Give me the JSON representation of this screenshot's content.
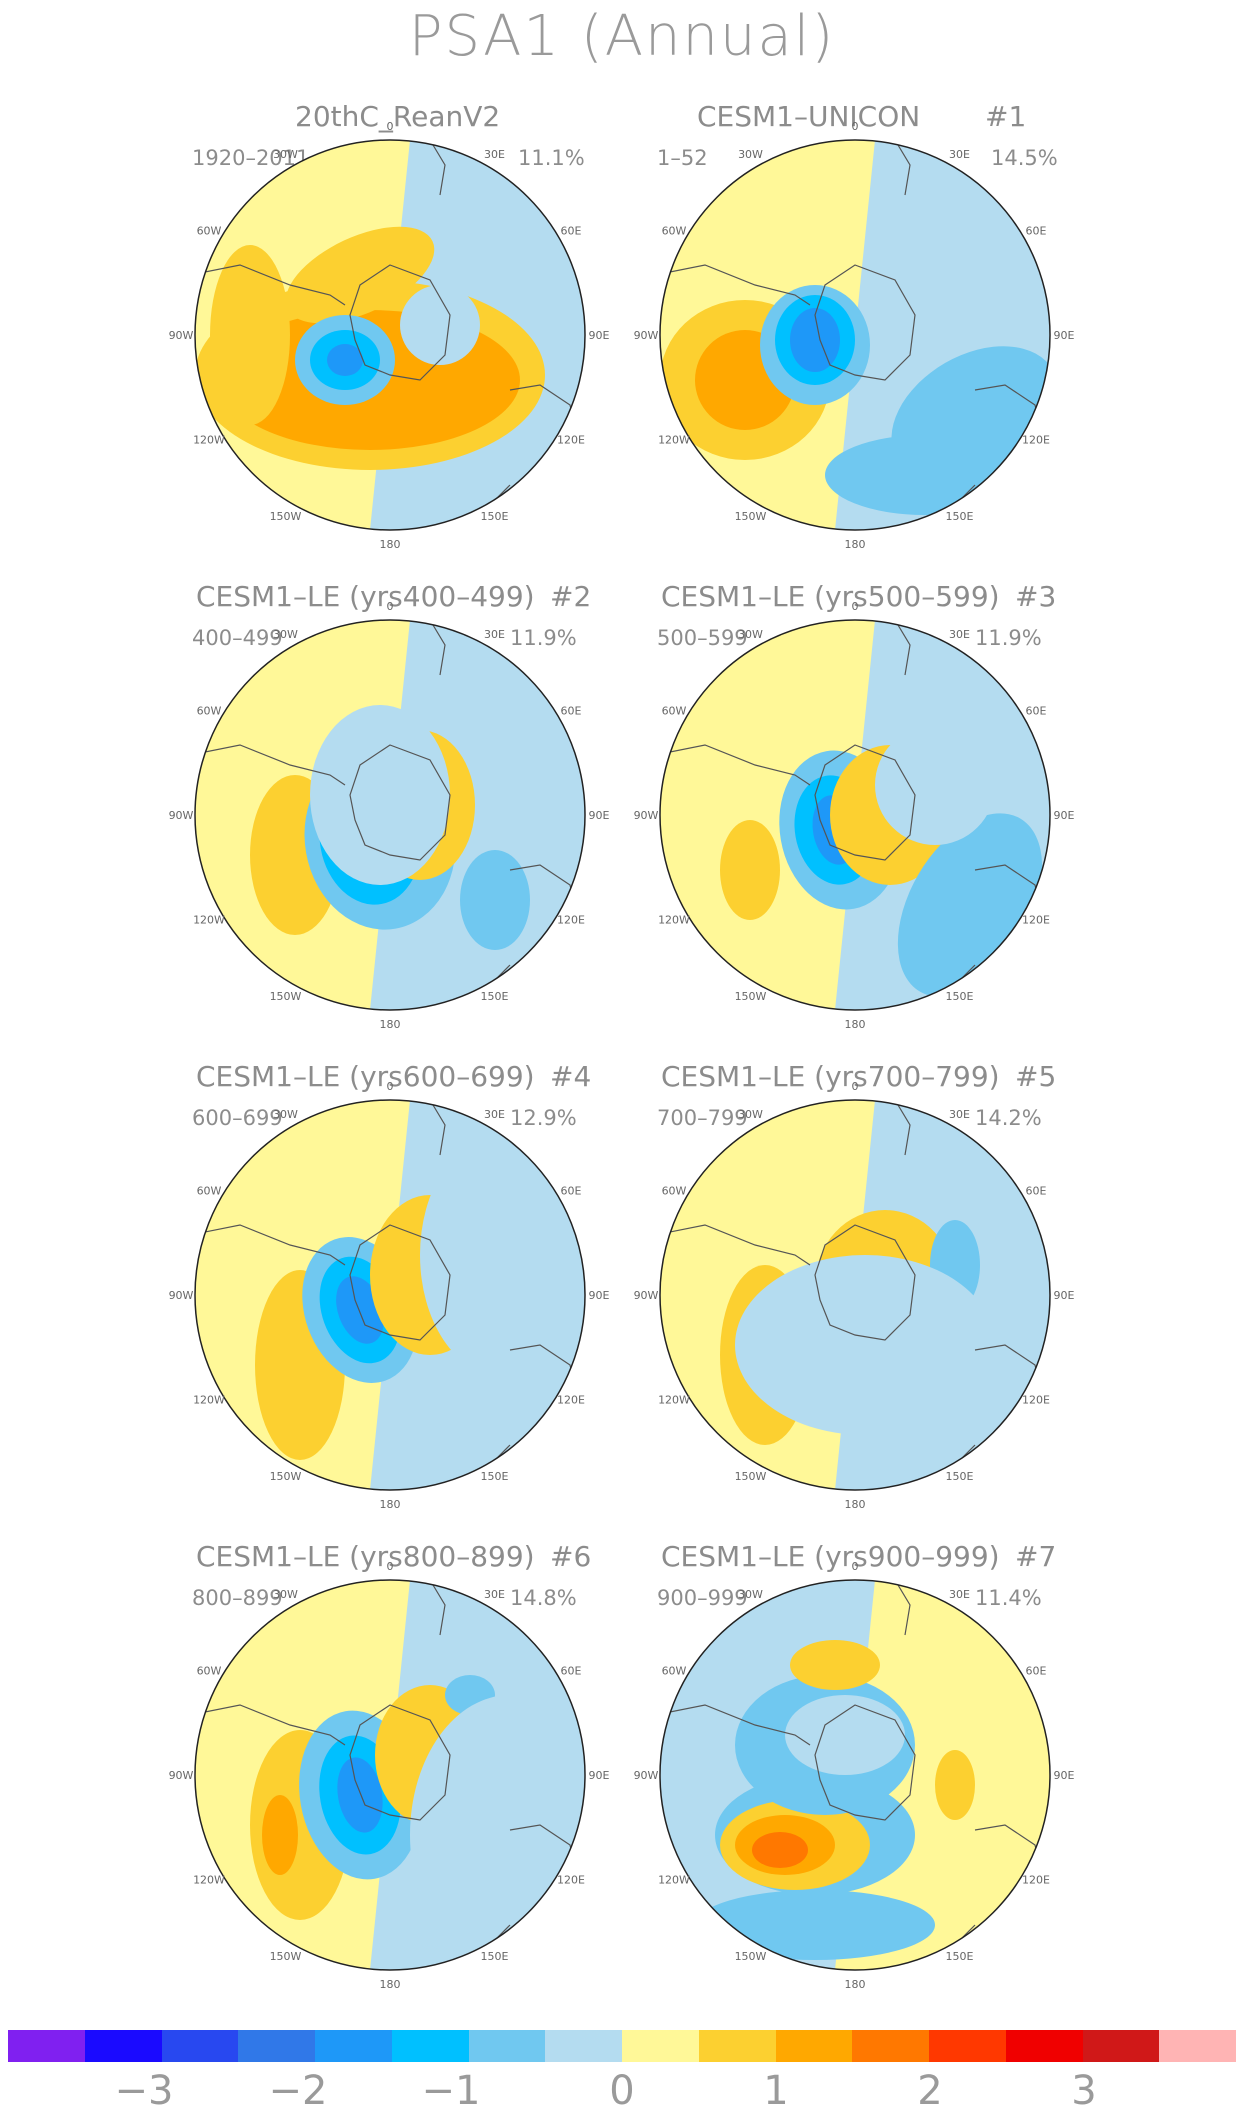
{
  "title": "PSA1 (Annual)",
  "colors": {
    "scale": [
      "#8020f0",
      "#1a0aff",
      "#2848f0",
      "#3078e8",
      "#1e98f8",
      "#00c0ff",
      "#70c8f0",
      "#b4dcf0",
      "#fff898",
      "#fcd030",
      "#ffa800",
      "#ff7800",
      "#ff3800",
      "#f00000",
      "#d01818",
      "#ffb4b4"
    ],
    "land_line": "#555555"
  },
  "colorbar_ticks": [
    "−3",
    "−2",
    "−1",
    "0",
    "1",
    "2",
    "3"
  ],
  "lon_labels": [
    "0",
    "30E",
    "60E",
    "90E",
    "120E",
    "150E",
    "180",
    "150W",
    "120W",
    "90W",
    "60W",
    "30W"
  ],
  "panels": [
    {
      "title": "20thC_ReanV2",
      "suffix": "",
      "period": "1920–2011",
      "variance": "11.1%"
    },
    {
      "title": "CESM1–UNICON",
      "suffix": "#1",
      "period": "1–52",
      "variance": "14.5%"
    },
    {
      "title": "CESM1–LE (yrs400–499)",
      "suffix": "#2",
      "period": "400–499",
      "variance": "11.9%"
    },
    {
      "title": "CESM1–LE (yrs500–599)",
      "suffix": "#3",
      "period": "500–599",
      "variance": "11.9%"
    },
    {
      "title": "CESM1–LE (yrs600–699)",
      "suffix": "#4",
      "period": "600–699",
      "variance": "12.9%"
    },
    {
      "title": "CESM1–LE (yrs700–799)",
      "suffix": "#5",
      "period": "700–799",
      "variance": "14.2%"
    },
    {
      "title": "CESM1–LE (yrs800–899)",
      "suffix": "#6",
      "period": "800–899",
      "variance": "14.8%"
    },
    {
      "title": "CESM1–LE (yrs900–999)",
      "suffix": "#7",
      "period": "900–999",
      "variance": "11.4%"
    }
  ],
  "chart_data": {
    "type": "heatmap",
    "title": "PSA1 (Annual)",
    "projection": "south-polar stereographic",
    "colorbar_range": [
      -3.5,
      3.5
    ],
    "colorbar_interval": 0.5,
    "panels": [
      {
        "name": "20thC_ReanV2",
        "period": "1920–2011",
        "variance_pct": 11.1
      },
      {
        "name": "CESM1–UNICON #1",
        "period": "1–52",
        "variance_pct": 14.5
      },
      {
        "name": "CESM1–LE (yrs400–499) #2",
        "period": "400–499",
        "variance_pct": 11.9
      },
      {
        "name": "CESM1–LE (yrs500–599) #3",
        "period": "500–599",
        "variance_pct": 11.9
      },
      {
        "name": "CESM1–LE (yrs600–699) #4",
        "period": "600–699",
        "variance_pct": 12.9
      },
      {
        "name": "CESM1–LE (yrs700–799) #5",
        "period": "700–799",
        "variance_pct": 14.2
      },
      {
        "name": "CESM1–LE (yrs800–899) #6",
        "period": "800–899",
        "variance_pct": 14.8
      },
      {
        "name": "CESM1–LE (yrs900–999) #7",
        "period": "900–999",
        "variance_pct": 11.4
      }
    ]
  }
}
